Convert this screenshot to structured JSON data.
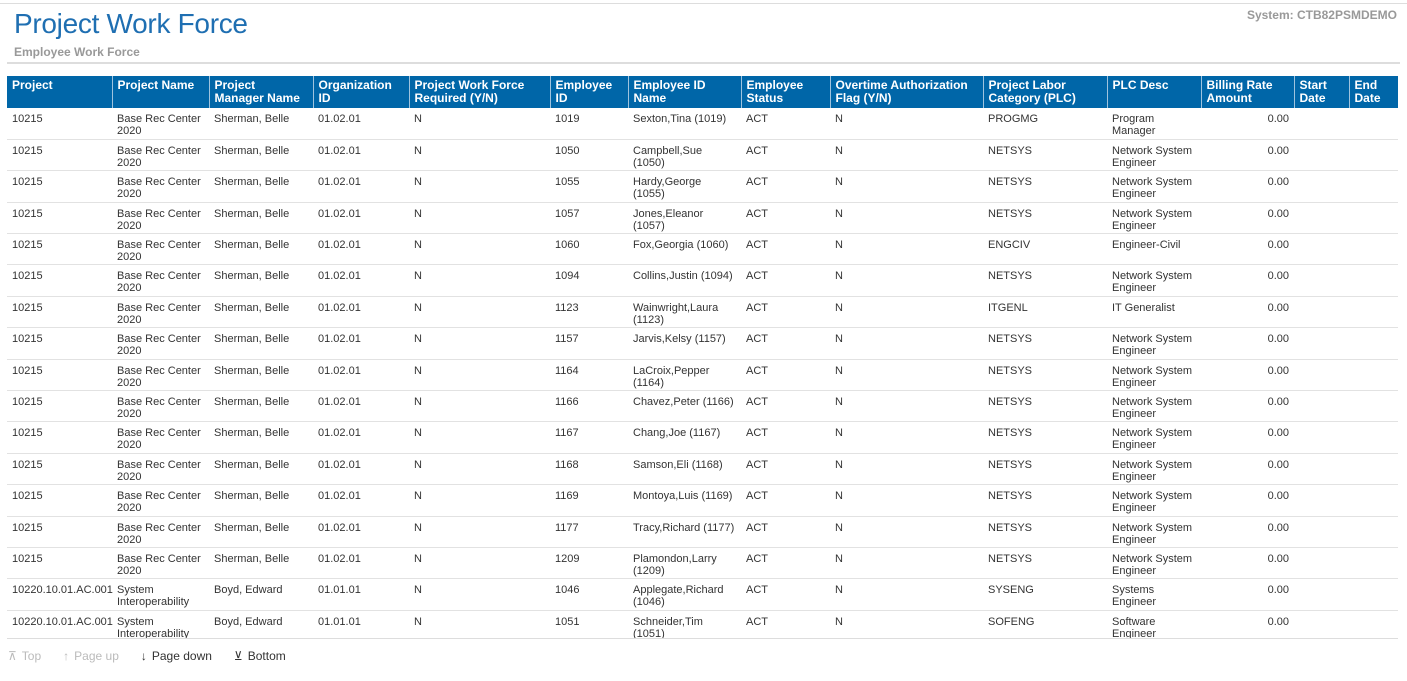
{
  "header": {
    "title": "Project Work Force",
    "subtitle": "Employee Work Force",
    "system": "System:  CTB82PSMDEMO"
  },
  "columns": [
    "Project",
    "Project Name",
    "Project Manager Name",
    "Organization ID",
    "Project Work Force Required (Y/N)",
    "Employee ID",
    "Employee ID Name",
    "Employee Status",
    "Overtime Authorization Flag (Y/N)",
    "Project Labor Category (PLC)",
    "PLC Desc",
    "Billing Rate Amount",
    "Start Date",
    "End Date"
  ],
  "rows": [
    [
      "10215",
      "Base Rec Center 2020",
      "Sherman, Belle",
      "01.02.01",
      "N",
      "1019",
      "Sexton,Tina (1019)",
      "ACT",
      "N",
      "PROGMG",
      "Program Manager",
      "0.00",
      "",
      ""
    ],
    [
      "10215",
      "Base Rec Center 2020",
      "Sherman, Belle",
      "01.02.01",
      "N",
      "1050",
      "Campbell,Sue (1050)",
      "ACT",
      "N",
      "NETSYS",
      "Network System Engineer",
      "0.00",
      "",
      ""
    ],
    [
      "10215",
      "Base Rec Center 2020",
      "Sherman, Belle",
      "01.02.01",
      "N",
      "1055",
      "Hardy,George (1055)",
      "ACT",
      "N",
      "NETSYS",
      "Network System Engineer",
      "0.00",
      "",
      ""
    ],
    [
      "10215",
      "Base Rec Center 2020",
      "Sherman, Belle",
      "01.02.01",
      "N",
      "1057",
      "Jones,Eleanor (1057)",
      "ACT",
      "N",
      "NETSYS",
      "Network System Engineer",
      "0.00",
      "",
      ""
    ],
    [
      "10215",
      "Base Rec Center 2020",
      "Sherman, Belle",
      "01.02.01",
      "N",
      "1060",
      "Fox,Georgia (1060)",
      "ACT",
      "N",
      "ENGCIV",
      "Engineer-Civil",
      "0.00",
      "",
      ""
    ],
    [
      "10215",
      "Base Rec Center 2020",
      "Sherman, Belle",
      "01.02.01",
      "N",
      "1094",
      "Collins,Justin (1094)",
      "ACT",
      "N",
      "NETSYS",
      "Network System Engineer",
      "0.00",
      "",
      ""
    ],
    [
      "10215",
      "Base Rec Center 2020",
      "Sherman, Belle",
      "01.02.01",
      "N",
      "1123",
      "Wainwright,Laura (1123)",
      "ACT",
      "N",
      "ITGENL",
      "IT Generalist",
      "0.00",
      "",
      ""
    ],
    [
      "10215",
      "Base Rec Center 2020",
      "Sherman, Belle",
      "01.02.01",
      "N",
      "1157",
      "Jarvis,Kelsy (1157)",
      "ACT",
      "N",
      "NETSYS",
      "Network System Engineer",
      "0.00",
      "",
      ""
    ],
    [
      "10215",
      "Base Rec Center 2020",
      "Sherman, Belle",
      "01.02.01",
      "N",
      "1164",
      "LaCroix,Pepper (1164)",
      "ACT",
      "N",
      "NETSYS",
      "Network System Engineer",
      "0.00",
      "",
      ""
    ],
    [
      "10215",
      "Base Rec Center 2020",
      "Sherman, Belle",
      "01.02.01",
      "N",
      "1166",
      "Chavez,Peter (1166)",
      "ACT",
      "N",
      "NETSYS",
      "Network System Engineer",
      "0.00",
      "",
      ""
    ],
    [
      "10215",
      "Base Rec Center 2020",
      "Sherman, Belle",
      "01.02.01",
      "N",
      "1167",
      "Chang,Joe (1167)",
      "ACT",
      "N",
      "NETSYS",
      "Network System Engineer",
      "0.00",
      "",
      ""
    ],
    [
      "10215",
      "Base Rec Center 2020",
      "Sherman, Belle",
      "01.02.01",
      "N",
      "1168",
      "Samson,Eli (1168)",
      "ACT",
      "N",
      "NETSYS",
      "Network System Engineer",
      "0.00",
      "",
      ""
    ],
    [
      "10215",
      "Base Rec Center 2020",
      "Sherman, Belle",
      "01.02.01",
      "N",
      "1169",
      "Montoya,Luis (1169)",
      "ACT",
      "N",
      "NETSYS",
      "Network System Engineer",
      "0.00",
      "",
      ""
    ],
    [
      "10215",
      "Base Rec Center 2020",
      "Sherman, Belle",
      "01.02.01",
      "N",
      "1177",
      "Tracy,Richard (1177)",
      "ACT",
      "N",
      "NETSYS",
      "Network System Engineer",
      "0.00",
      "",
      ""
    ],
    [
      "10215",
      "Base Rec Center 2020",
      "Sherman, Belle",
      "01.02.01",
      "N",
      "1209",
      "Plamondon,Larry (1209)",
      "ACT",
      "N",
      "NETSYS",
      "Network System Engineer",
      "0.00",
      "",
      ""
    ],
    [
      "10220.10.01.AC.001",
      "System Interoperability",
      "Boyd, Edward",
      "01.01.01",
      "N",
      "1046",
      "Applegate,Richard (1046)",
      "ACT",
      "N",
      "SYSENG",
      "Systems Engineer",
      "0.00",
      "",
      ""
    ],
    [
      "10220.10.01.AC.001",
      "System Interoperability",
      "Boyd, Edward",
      "01.01.01",
      "N",
      "1051",
      "Schneider,Tim (1051)",
      "ACT",
      "N",
      "SOFENG",
      "Software Engineer",
      "0.00",
      "",
      ""
    ]
  ],
  "footer": {
    "top": "Top",
    "page_up": "Page up",
    "page_down": "Page down",
    "bottom": "Bottom"
  },
  "colors": {
    "header_bg": "#0066a8",
    "title": "#1f6fb2"
  }
}
